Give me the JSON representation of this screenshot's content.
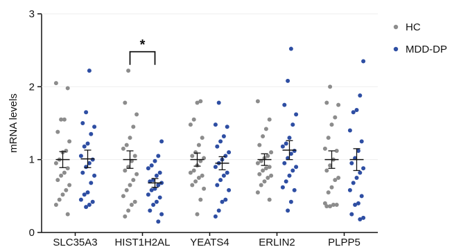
{
  "chart_data": {
    "type": "scatter",
    "ylabel": "mRNA levels",
    "ylim": [
      0,
      3
    ],
    "yticks": [
      0,
      1,
      2,
      3
    ],
    "grid": false,
    "legend_position": "top-right",
    "categories": [
      "SLC35A3",
      "HIST1H2AL",
      "YEATS4",
      "ERLIN2",
      "PLPP5"
    ],
    "series": [
      {
        "name": "HC",
        "color": "#8c8c8c",
        "points": [
          [
            2.05,
            1.98,
            1.55,
            1.55,
            1.38,
            1.25,
            1.12,
            1.1,
            1.0,
            0.95,
            0.88,
            0.82,
            0.78,
            0.72,
            0.65,
            0.58,
            0.52,
            0.45,
            0.38,
            0.25
          ],
          [
            2.22,
            1.78,
            1.62,
            1.45,
            1.3,
            1.2,
            1.15,
            1.05,
            0.98,
            0.9,
            0.85,
            0.8,
            0.72,
            0.65,
            0.58,
            0.5,
            0.42,
            0.38,
            0.3,
            0.22
          ],
          [
            1.8,
            1.78,
            1.55,
            1.48,
            1.3,
            1.2,
            1.1,
            1.05,
            1.02,
            0.98,
            0.92,
            0.85,
            0.82,
            0.78,
            0.75,
            0.7,
            0.65,
            0.6,
            0.45,
            0.25
          ],
          [
            1.8,
            1.55,
            1.42,
            1.32,
            1.2,
            1.1,
            1.05,
            1.02,
            0.98,
            0.95,
            0.9,
            0.88,
            0.85,
            0.8,
            0.78,
            0.75,
            0.7,
            0.65,
            0.55,
            0.45
          ],
          [
            2.0,
            1.78,
            1.75,
            1.58,
            1.48,
            1.3,
            1.15,
            1.12,
            1.0,
            0.92,
            0.85,
            0.75,
            0.72,
            0.62,
            0.55,
            0.4,
            0.38,
            0.38,
            0.36,
            0.36
          ]
        ],
        "mean": [
          1.0,
          1.0,
          1.0,
          1.0,
          1.0
        ],
        "sem": [
          0.11,
          0.12,
          0.09,
          0.08,
          0.12
        ]
      },
      {
        "name": "MDD-DP",
        "color": "#2e4ea3",
        "points": [
          [
            2.22,
            1.65,
            1.5,
            1.45,
            1.35,
            1.22,
            1.18,
            1.05,
            1.0,
            0.95,
            0.9,
            0.82,
            0.78,
            0.68,
            0.55,
            0.52,
            0.45,
            0.42,
            0.38,
            0.35
          ],
          [
            1.25,
            1.05,
            0.98,
            0.92,
            0.88,
            0.82,
            0.78,
            0.72,
            0.7,
            0.68,
            0.65,
            0.6,
            0.58,
            0.52,
            0.48,
            0.42,
            0.38,
            0.3,
            0.25,
            0.15
          ],
          [
            1.78,
            1.48,
            1.45,
            1.32,
            1.25,
            1.18,
            1.1,
            1.05,
            1.0,
            0.95,
            0.9,
            0.82,
            0.78,
            0.72,
            0.65,
            0.58,
            0.45,
            0.42,
            0.3,
            0.22
          ],
          [
            2.52,
            2.08,
            1.75,
            1.62,
            1.48,
            1.3,
            1.22,
            1.18,
            1.12,
            1.08,
            1.02,
            0.95,
            0.9,
            0.85,
            0.78,
            0.7,
            0.62,
            0.58,
            0.42,
            0.3
          ],
          [
            2.35,
            1.88,
            1.68,
            1.65,
            1.4,
            1.25,
            1.12,
            1.02,
            0.95,
            0.88,
            0.82,
            0.75,
            0.68,
            0.58,
            0.5,
            0.4,
            0.38,
            0.25,
            0.2,
            0.18
          ]
        ],
        "mean": [
          1.01,
          0.68,
          0.95,
          1.13,
          1.0
        ],
        "sem": [
          0.12,
          0.06,
          0.09,
          0.13,
          0.15
        ]
      }
    ],
    "annotations": [
      {
        "text": "*",
        "category": "HIST1H2AL",
        "between": [
          "HC",
          "MDD-DP"
        ]
      }
    ]
  }
}
